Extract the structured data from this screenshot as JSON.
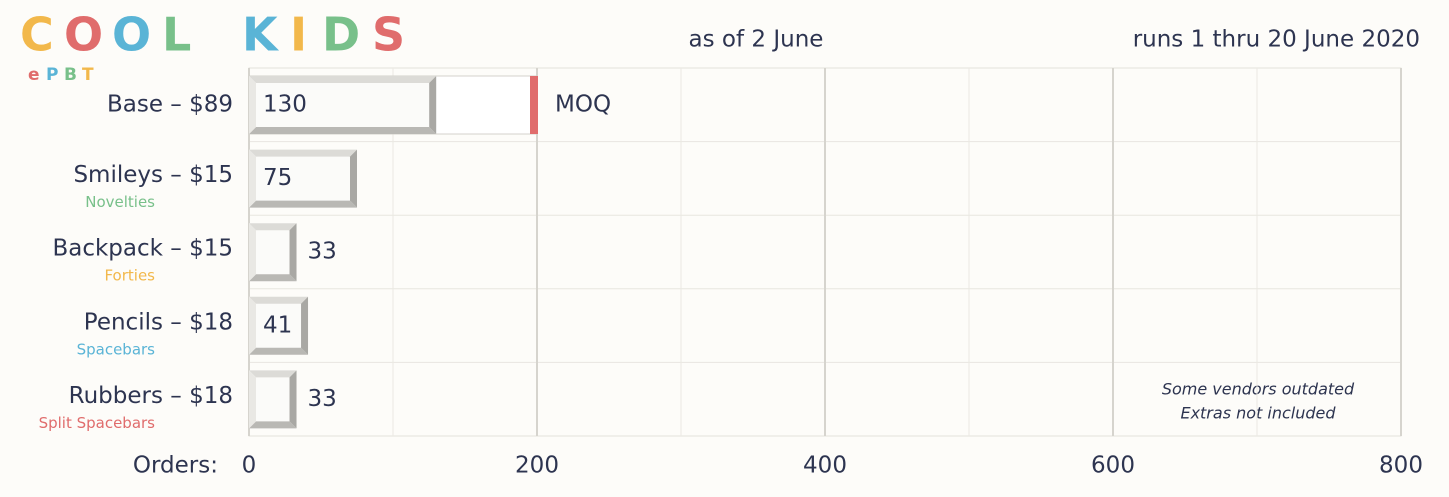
{
  "chart_data": {
    "type": "bar",
    "logo": {
      "letters": [
        "C",
        "O",
        "O",
        "L",
        "K",
        "I",
        "D",
        "S"
      ],
      "colors": [
        "#f2b84b",
        "#e06c6c",
        "#5ab4d6",
        "#78c08a",
        "#5ab4d6",
        "#f2b84b",
        "#78c08a",
        "#e06c6c"
      ],
      "sub_letters": [
        "e",
        "P",
        "B",
        "T"
      ],
      "sub_colors": [
        "#e06c6c",
        "#5ab4d6",
        "#78c08a",
        "#f2b84b"
      ]
    },
    "subtitle": "as of 2 June",
    "run_note": "runs 1 thru 20 June 2020",
    "categories": [
      "Base – $89",
      "Smileys – $15",
      "Backpack – $15",
      "Pencils – $18",
      "Rubbers – $18"
    ],
    "sublabels": [
      null,
      "Novelties",
      "Forties",
      "Spacebars",
      "Split Spacebars"
    ],
    "sublabel_colors": [
      null,
      "#78c08a",
      "#f2b84b",
      "#5ab4d6",
      "#e06c6c"
    ],
    "values": [
      130,
      75,
      33,
      41,
      33
    ],
    "moq": {
      "value": 200,
      "label": "MOQ",
      "color": "#e06c6c"
    },
    "x_label": "Orders:",
    "xlim": [
      0,
      800
    ],
    "xticks": [
      0,
      200,
      400,
      600,
      800
    ],
    "xminor_ticks": [
      100,
      300,
      500,
      700
    ],
    "annotations": [
      "Some vendors outdated",
      "Extras not included"
    ],
    "grid": true
  }
}
